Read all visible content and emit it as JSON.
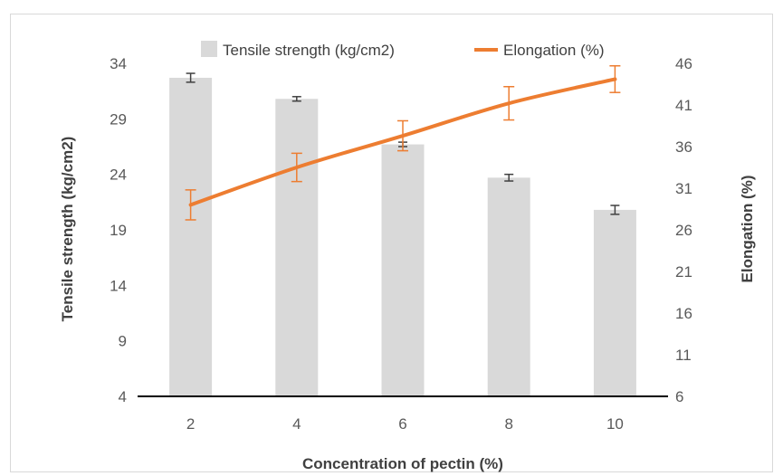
{
  "chart_data": {
    "type": "bar+line",
    "categories": [
      "2",
      "4",
      "6",
      "8",
      "10"
    ],
    "series": [
      {
        "name": "Tensile strength (kg/cm2)",
        "kind": "bar",
        "axis": "left",
        "values": [
          32.7,
          30.8,
          26.7,
          23.7,
          20.8
        ],
        "errors": [
          0.4,
          0.2,
          0.2,
          0.3,
          0.4
        ],
        "color": "#d9d9d9",
        "error_color": "#404040"
      },
      {
        "name": "Elongation (%)",
        "kind": "line",
        "axis": "right",
        "values": [
          29.0,
          33.5,
          37.3,
          41.2,
          44.1
        ],
        "errors": [
          1.8,
          1.7,
          1.8,
          2.0,
          1.6
        ],
        "color": "#ed7d31"
      }
    ],
    "xlabel": "Concentration of pectin (%)",
    "ylabel_left": "Tensile strength (kg/cm2)",
    "ylabel_right": "Elongation (%)",
    "ylim_left": [
      4,
      34
    ],
    "yticks_left": [
      "4",
      "9",
      "14",
      "19",
      "24",
      "29",
      "34"
    ],
    "ylim_right": [
      6,
      46
    ],
    "yticks_right": [
      "6",
      "11",
      "16",
      "21",
      "26",
      "31",
      "36",
      "41",
      "46"
    ],
    "legend_position": "top",
    "grid": false
  }
}
